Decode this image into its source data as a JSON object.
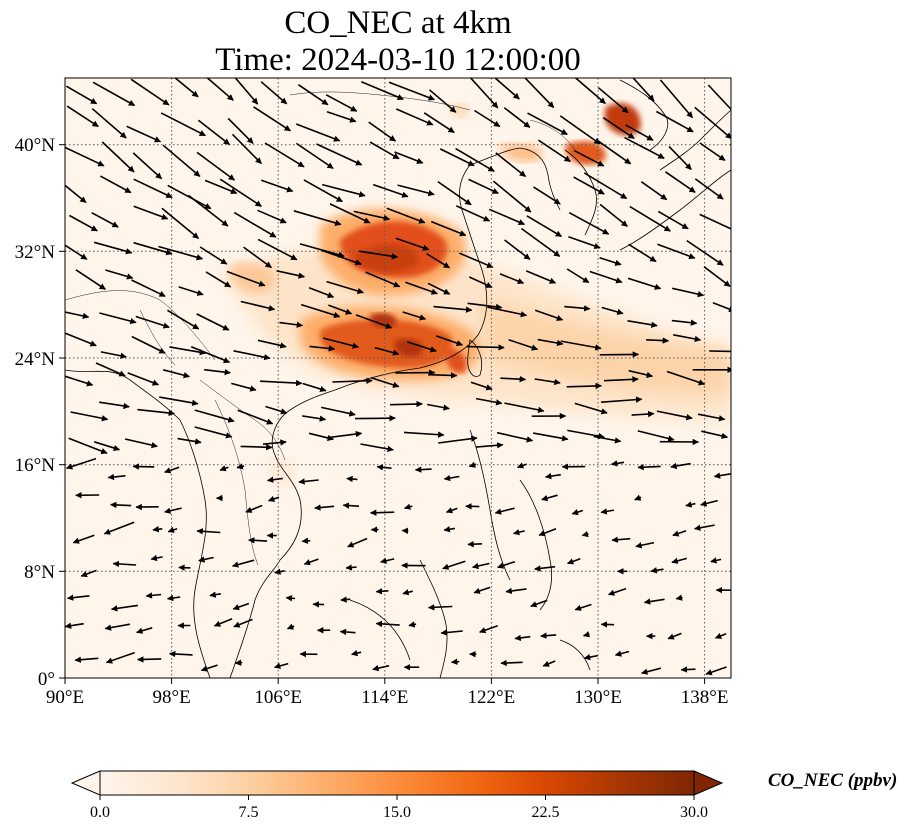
{
  "title_line1": "CO_NEC at 4km",
  "title_line2": "Time: 2024-03-10 12:00:00",
  "colorbar": {
    "label": "CO_NEC (ppbv)",
    "ticks": [
      "0.0",
      "7.5",
      "15.0",
      "22.5",
      "30.0"
    ],
    "min": 0,
    "max": 30,
    "extend": "both",
    "colormap": [
      "#fff5eb",
      "#fee6ce",
      "#fdd0a2",
      "#fdae6b",
      "#fd8d3c",
      "#f16913",
      "#d94801",
      "#a63603",
      "#7f2704"
    ]
  },
  "map": {
    "lon_range": [
      90,
      140
    ],
    "lat_range": [
      0,
      45
    ],
    "lon_ticks": [
      "90°E",
      "98°E",
      "106°E",
      "114°E",
      "122°E",
      "130°E",
      "138°E"
    ],
    "lat_ticks": [
      "0°",
      "8°N",
      "16°N",
      "24°N",
      "32°N",
      "40°N"
    ],
    "gridlines": "dotted",
    "background_color": "#fff5eb",
    "coastline_color": "#000000"
  },
  "wind_vectors": "present (black arrows, westerly flow north of 18°N, easterly flow south)"
}
